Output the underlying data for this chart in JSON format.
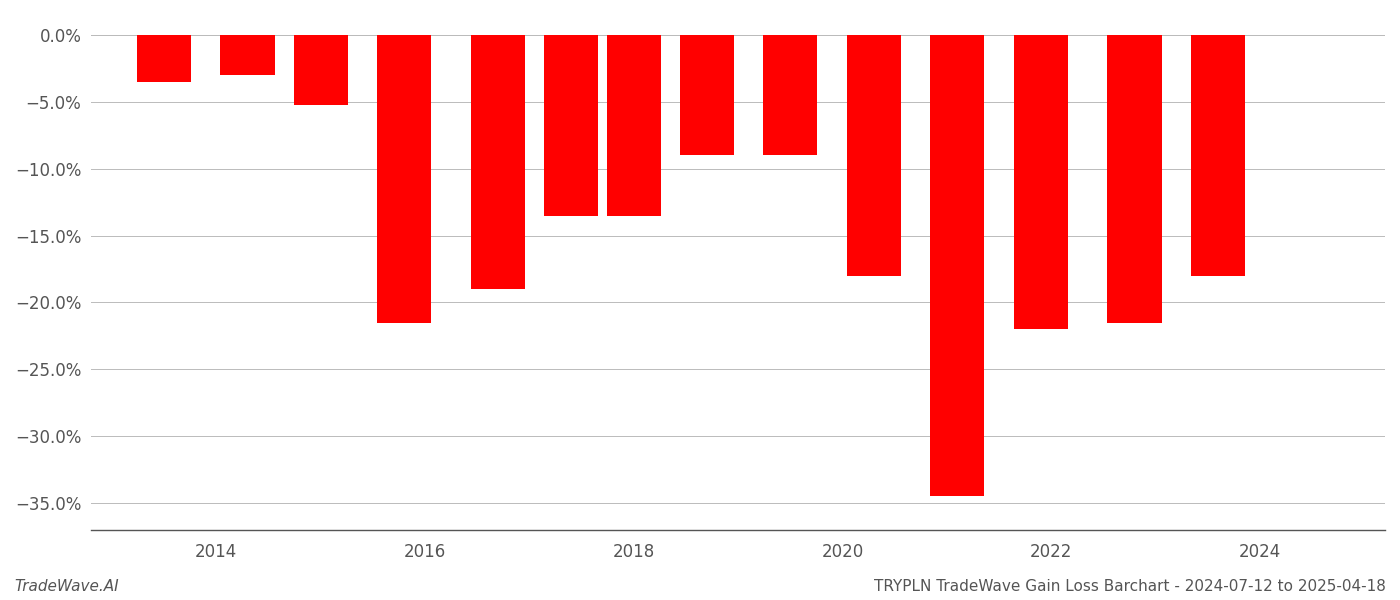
{
  "years": [
    2013.5,
    2014.3,
    2015.0,
    2015.8,
    2016.7,
    2017.4,
    2018.0,
    2018.7,
    2019.5,
    2020.3,
    2021.1,
    2021.9,
    2022.8,
    2023.6
  ],
  "values": [
    -3.5,
    -3.0,
    -5.2,
    -21.5,
    -19.0,
    -13.5,
    -13.5,
    -9.0,
    -9.0,
    -18.0,
    -34.5,
    -22.0,
    -21.5,
    -18.0
  ],
  "bar_color": "#FF0000",
  "bar_width": 0.52,
  "xlim": [
    2012.8,
    2025.2
  ],
  "ylim": [
    -37,
    1.5
  ],
  "xtick_positions": [
    2014,
    2016,
    2018,
    2020,
    2022,
    2024
  ],
  "xtick_labels": [
    "2014",
    "2016",
    "2018",
    "2020",
    "2022",
    "2024"
  ],
  "ytick_values": [
    0.0,
    -5.0,
    -10.0,
    -15.0,
    -20.0,
    -25.0,
    -30.0,
    -35.0
  ],
  "ytick_labels": [
    "0.0%",
    "−5.0%",
    "−10.0%",
    "−15.0%",
    "−20.0%",
    "−25.0%",
    "−30.0%",
    "−35.0%"
  ],
  "bottom_left_text": "TradeWave.AI",
  "bottom_right_text": "TRYPLN TradeWave Gain Loss Barchart - 2024-07-12 to 2025-04-18",
  "background_color": "#FFFFFF",
  "grid_color": "#BBBBBB",
  "text_color": "#555555",
  "axis_color": "#555555",
  "tick_fontsize": 12,
  "footer_fontsize": 11
}
